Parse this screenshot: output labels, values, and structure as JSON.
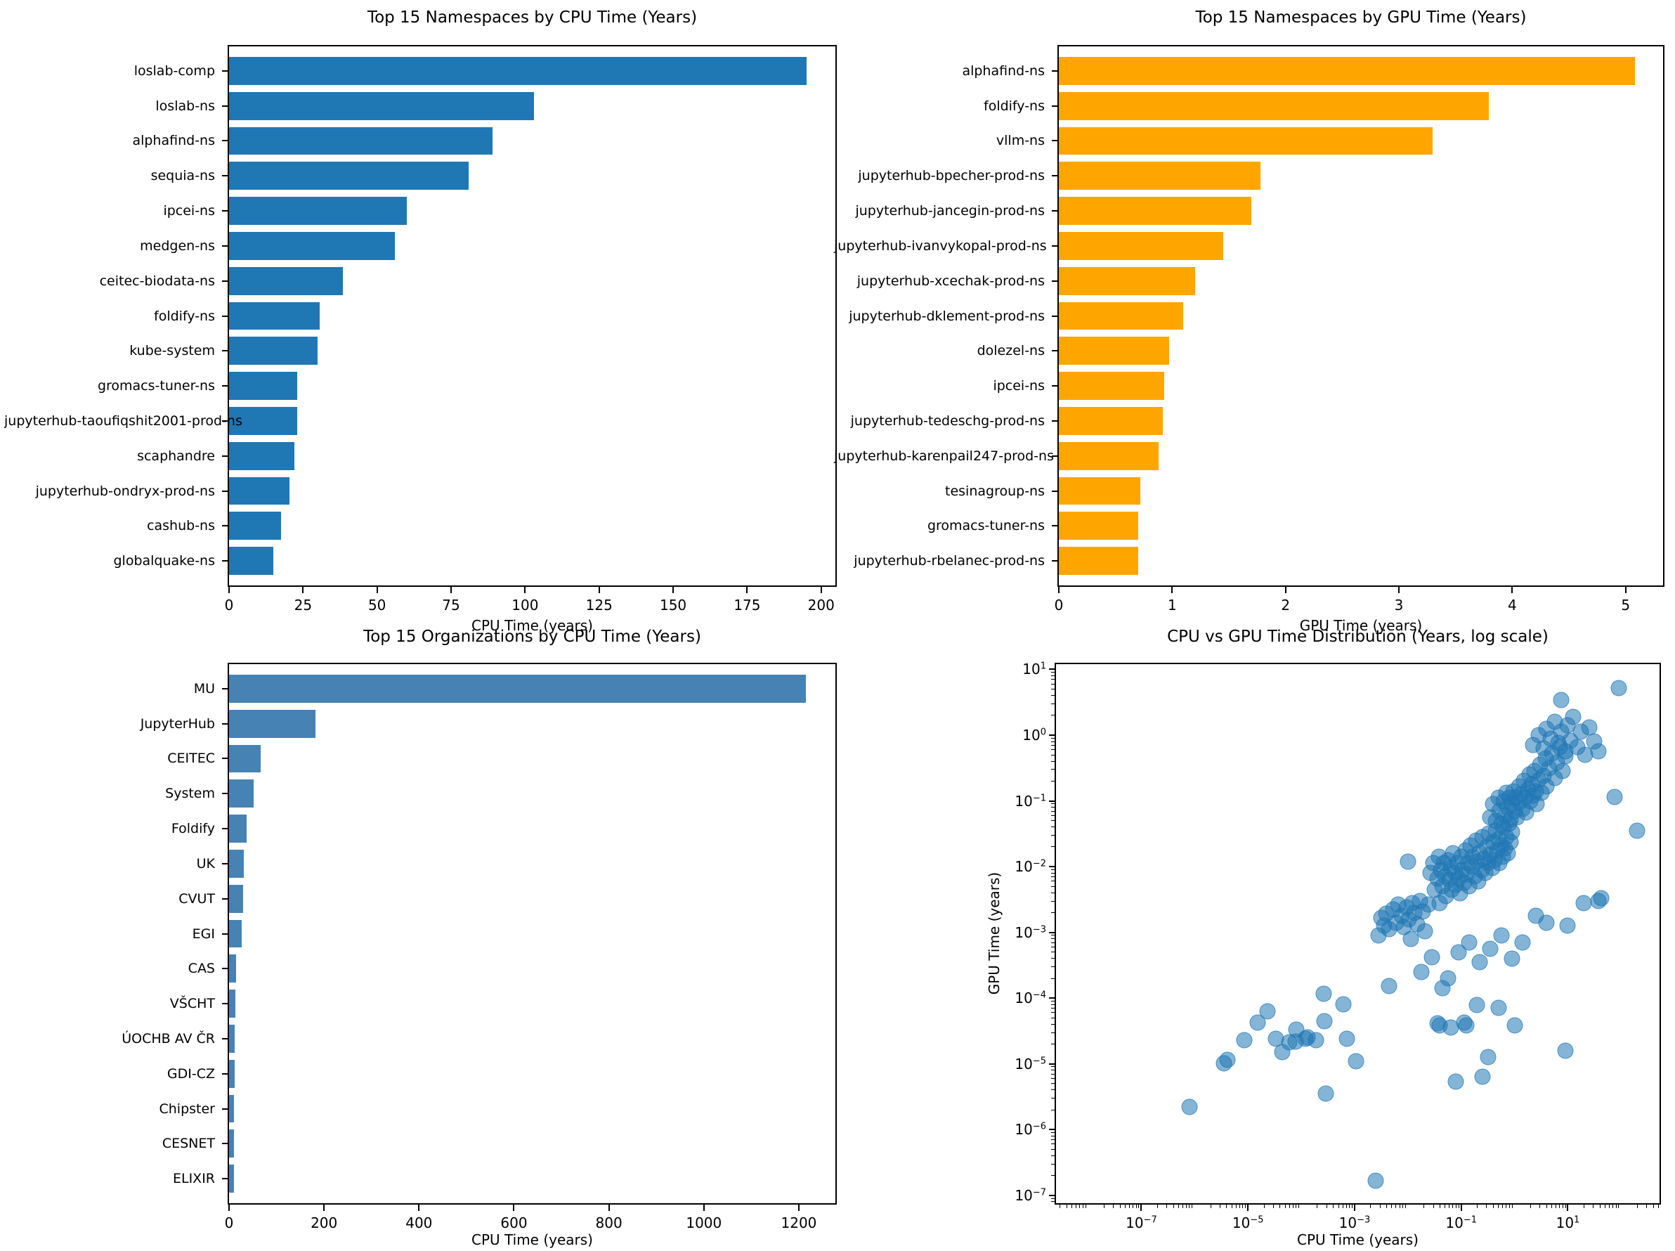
{
  "figure": {
    "background": "#ffffff",
    "text_color": "#000000"
  },
  "chart_data": [
    {
      "id": "ns_cpu",
      "type": "bar",
      "orientation": "horizontal",
      "title": "Top 15 Namespaces by CPU Time (Years)",
      "xlabel": "CPU Time (years)",
      "bar_color": "#1f77b4",
      "xlim": [
        0,
        204.8
      ],
      "xticks": [
        0,
        25,
        50,
        75,
        100,
        125,
        150,
        175,
        200
      ],
      "categories": [
        "loslab-comp",
        "loslab-ns",
        "alphafind-ns",
        "sequia-ns",
        "ipcei-ns",
        "medgen-ns",
        "ceitec-biodata-ns",
        "foldify-ns",
        "kube-system",
        "gromacs-tuner-ns",
        "jupyterhub-taoufiqshit2001-prod-ns",
        "scaphandre",
        "jupyterhub-ondryx-prod-ns",
        "cashub-ns",
        "globalquake-ns"
      ],
      "values": [
        195,
        103,
        89,
        81,
        60,
        56,
        38.5,
        30.5,
        30,
        23,
        23,
        22,
        20.5,
        17.5,
        15
      ]
    },
    {
      "id": "ns_gpu",
      "type": "bar",
      "orientation": "horizontal",
      "title": "Top 15 Namespaces by GPU Time (Years)",
      "xlabel": "GPU Time (years)",
      "bar_color": "#ffa500",
      "xlim": [
        0,
        5.33
      ],
      "xticks": [
        0,
        1,
        2,
        3,
        4,
        5
      ],
      "categories": [
        "alphafind-ns",
        "foldify-ns",
        "vllm-ns",
        "jupyterhub-bpecher-prod-ns",
        "jupyterhub-jancegin-prod-ns",
        "jupyterhub-ivanvykopal-prod-ns",
        "jupyterhub-xcechak-prod-ns",
        "jupyterhub-dklement-prod-ns",
        "dolezel-ns",
        "ipcei-ns",
        "jupyterhub-tedeschg-prod-ns",
        "jupyterhub-karenpail247-prod-ns",
        "tesinagroup-ns",
        "gromacs-tuner-ns",
        "jupyterhub-rbelanec-prod-ns"
      ],
      "values": [
        5.08,
        3.79,
        3.3,
        1.78,
        1.7,
        1.45,
        1.2,
        1.1,
        0.97,
        0.93,
        0.92,
        0.88,
        0.72,
        0.7,
        0.7
      ]
    },
    {
      "id": "org_cpu",
      "type": "bar",
      "orientation": "horizontal",
      "title": "Top 15 Organizations by CPU Time (Years)",
      "xlabel": "CPU Time (years)",
      "bar_color": "#4682b4",
      "xlim": [
        0,
        1277
      ],
      "xticks": [
        0,
        200,
        400,
        600,
        800,
        1000,
        1200
      ],
      "categories": [
        "MU",
        "JupyterHub",
        "CEITEC",
        "System",
        "Foldify",
        "UK",
        "CVUT",
        "EGI",
        "CAS",
        "VŠCHT",
        "ÚOCHB AV ČR",
        "GDI-CZ",
        "Chipster",
        "CESNET",
        "ELIXIR"
      ],
      "values": [
        1215,
        182,
        66,
        52,
        37,
        31,
        30,
        26,
        15,
        14,
        12,
        11.5,
        11,
        10.5,
        10
      ]
    },
    {
      "id": "cpu_gpu_scatter",
      "type": "scatter",
      "title": "CPU vs GPU Time Distribution (Years, log scale)",
      "xlabel": "CPU Time (years)",
      "ylabel": "GPU Time (years)",
      "x_scale": "log",
      "y_scale": "log",
      "xlim_log10": [
        -8.6,
        2.72
      ],
      "ylim_log10": [
        -7.12,
        1.08
      ],
      "xtick_exponents": [
        -7,
        -5,
        -3,
        -1,
        1
      ],
      "ytick_exponents": [
        -7,
        -6,
        -5,
        -4,
        -3,
        -2,
        -1,
        0,
        1
      ],
      "marker_color": "#1f77b4",
      "marker_alpha": 0.6,
      "points_log10": [
        [
          -6.1,
          -5.65
        ],
        [
          -5.45,
          -4.99
        ],
        [
          -5.39,
          -4.94
        ],
        [
          -5.07,
          -4.64
        ],
        [
          -4.82,
          -4.37
        ],
        [
          -4.63,
          -4.2
        ],
        [
          -4.47,
          -4.62
        ],
        [
          -4.36,
          -4.82
        ],
        [
          -4.22,
          -4.67
        ],
        [
          -4.11,
          -4.66
        ],
        [
          -4.09,
          -4.48
        ],
        [
          -3.92,
          -4.62
        ],
        [
          -3.88,
          -4.6
        ],
        [
          -3.72,
          -4.64
        ],
        [
          -3.58,
          -3.93
        ],
        [
          -3.56,
          -4.35
        ],
        [
          -3.54,
          -5.45
        ],
        [
          -3.21,
          -4.09
        ],
        [
          -3.15,
          -4.62
        ],
        [
          -2.97,
          -4.96
        ],
        [
          -2.6,
          -6.78
        ],
        [
          -2.55,
          -3.05
        ],
        [
          -2.5,
          -2.78
        ],
        [
          -2.45,
          -2.9
        ],
        [
          -2.4,
          -2.72
        ],
        [
          -2.35,
          -2.95
        ],
        [
          -2.28,
          -2.65
        ],
        [
          -2.22,
          -2.85
        ],
        [
          -2.18,
          -2.58
        ],
        [
          -2.12,
          -2.75
        ],
        [
          -2.08,
          -2.92
        ],
        [
          -2.02,
          -2.62
        ],
        [
          -1.98,
          -2.8
        ],
        [
          -1.92,
          -2.55
        ],
        [
          -1.88,
          -2.7
        ],
        [
          -1.82,
          -2.88
        ],
        [
          -1.78,
          -2.52
        ],
        [
          -1.72,
          -2.68
        ],
        [
          -1.68,
          -2.98
        ],
        [
          -1.62,
          -2.58
        ],
        [
          -2.35,
          -3.82
        ],
        [
          -1.95,
          -3.1
        ],
        [
          -1.75,
          -3.6
        ],
        [
          -1.55,
          -3.38
        ],
        [
          -1.45,
          -4.38
        ],
        [
          -1.4,
          -4.42
        ],
        [
          -1.35,
          -3.85
        ],
        [
          -1.25,
          -3.7
        ],
        [
          -1.2,
          -4.45
        ],
        [
          -1.05,
          -3.3
        ],
        [
          -0.95,
          -4.37
        ],
        [
          -0.9,
          -4.42
        ],
        [
          -0.7,
          -4.1
        ],
        [
          -0.5,
          -4.9
        ],
        [
          -0.3,
          -4.15
        ],
        [
          -0.05,
          -3.4
        ],
        [
          -1.1,
          -5.27
        ],
        [
          -0.6,
          -5.2
        ],
        [
          0.95,
          -4.8
        ],
        [
          0.0,
          -4.42
        ],
        [
          0.15,
          -3.15
        ],
        [
          0.4,
          -2.75
        ],
        [
          0.6,
          -2.85
        ],
        [
          1.0,
          -2.9
        ],
        [
          1.3,
          -2.55
        ],
        [
          1.62,
          -2.48
        ],
        [
          1.57,
          -2.52
        ],
        [
          2.3,
          -1.45
        ],
        [
          1.88,
          -0.94
        ],
        [
          -0.85,
          -3.15
        ],
        [
          -0.65,
          -3.45
        ],
        [
          -0.45,
          -3.25
        ],
        [
          -0.25,
          -3.05
        ],
        [
          -2.0,
          -1.92
        ],
        [
          -1.58,
          -2.1
        ],
        [
          -1.52,
          -1.95
        ],
        [
          -1.5,
          -2.35
        ],
        [
          -1.45,
          -2.18
        ],
        [
          -1.42,
          -1.85
        ],
        [
          -1.4,
          -2.55
        ],
        [
          -1.38,
          -2.05
        ],
        [
          -1.35,
          -2.3
        ],
        [
          -1.32,
          -1.95
        ],
        [
          -1.3,
          -2.15
        ],
        [
          -1.28,
          -2.45
        ],
        [
          -1.25,
          -1.9
        ],
        [
          -1.22,
          -2.2
        ],
        [
          -1.2,
          -2.02
        ],
        [
          -1.18,
          -2.35
        ],
        [
          -1.15,
          -1.8
        ],
        [
          -1.12,
          -2.1
        ],
        [
          -1.1,
          -2.28
        ],
        [
          -1.08,
          -1.95
        ],
        [
          -1.05,
          -2.18
        ],
        [
          -1.02,
          -2.4
        ],
        [
          -1.0,
          -1.85
        ],
        [
          -0.98,
          -2.05
        ],
        [
          -0.95,
          -2.25
        ],
        [
          -0.92,
          -1.75
        ],
        [
          -0.9,
          -2.12
        ],
        [
          -0.88,
          -1.95
        ],
        [
          -0.85,
          -2.3
        ],
        [
          -0.82,
          -1.68
        ],
        [
          -0.8,
          -2.0
        ],
        [
          -0.78,
          -1.85
        ],
        [
          -0.75,
          -2.15
        ],
        [
          -0.72,
          -1.6
        ],
        [
          -0.7,
          -1.92
        ],
        [
          -0.68,
          -2.22
        ],
        [
          -0.65,
          -1.78
        ],
        [
          -0.62,
          -2.05
        ],
        [
          -0.6,
          -1.55
        ],
        [
          -0.58,
          -1.88
        ],
        [
          -0.55,
          -2.1
        ],
        [
          -0.52,
          -1.7
        ],
        [
          -0.5,
          -1.95
        ],
        [
          -0.48,
          -1.5
        ],
        [
          -0.45,
          -1.82
        ],
        [
          -0.42,
          -2.02
        ],
        [
          -0.4,
          -1.62
        ],
        [
          -0.38,
          -1.9
        ],
        [
          -0.35,
          -1.45
        ],
        [
          -0.32,
          -1.75
        ],
        [
          -0.3,
          -1.58
        ],
        [
          -0.28,
          -1.95
        ],
        [
          -0.25,
          -1.68
        ],
        [
          -0.22,
          -1.85
        ],
        [
          -0.2,
          -1.4
        ],
        [
          -0.18,
          -1.72
        ],
        [
          -0.15,
          -1.55
        ],
        [
          -0.12,
          -1.8
        ],
        [
          -0.1,
          -1.35
        ],
        [
          -0.08,
          -1.62
        ],
        [
          -0.05,
          -1.48
        ],
        [
          -0.45,
          -1.25
        ],
        [
          -0.4,
          -1.05
        ],
        [
          -0.35,
          -1.3
        ],
        [
          -0.3,
          -0.95
        ],
        [
          -0.28,
          -1.15
        ],
        [
          -0.25,
          -1.35
        ],
        [
          -0.2,
          -1.0
        ],
        [
          -0.18,
          -1.22
        ],
        [
          -0.15,
          -0.88
        ],
        [
          -0.12,
          -1.1
        ],
        [
          -0.1,
          -0.95
        ],
        [
          -0.08,
          -1.28
        ],
        [
          -0.05,
          -1.05
        ],
        [
          -0.02,
          -0.85
        ],
        [
          0.0,
          -1.15
        ],
        [
          0.02,
          -0.95
        ],
        [
          0.05,
          -1.25
        ],
        [
          0.08,
          -0.78
        ],
        [
          0.1,
          -1.02
        ],
        [
          0.12,
          -0.9
        ],
        [
          0.15,
          -1.12
        ],
        [
          0.18,
          -0.7
        ],
        [
          0.2,
          -0.95
        ],
        [
          0.22,
          -1.18
        ],
        [
          0.25,
          -0.82
        ],
        [
          0.28,
          -0.6
        ],
        [
          0.3,
          -1.0
        ],
        [
          0.32,
          -0.75
        ],
        [
          0.35,
          -0.92
        ],
        [
          0.38,
          -0.55
        ],
        [
          0.4,
          -0.85
        ],
        [
          0.42,
          -1.05
        ],
        [
          0.45,
          -0.68
        ],
        [
          0.48,
          -0.45
        ],
        [
          0.5,
          -0.88
        ],
        [
          0.55,
          -0.62
        ],
        [
          0.58,
          -0.35
        ],
        [
          0.6,
          -0.78
        ],
        [
          0.65,
          -0.5
        ],
        [
          0.7,
          -0.28
        ],
        [
          0.75,
          -0.65
        ],
        [
          0.8,
          -0.42
        ],
        [
          0.85,
          -0.18
        ],
        [
          0.9,
          -0.55
        ],
        [
          0.95,
          -0.32
        ],
        [
          0.35,
          -0.15
        ],
        [
          0.45,
          0.0
        ],
        [
          0.55,
          -0.2
        ],
        [
          0.6,
          0.1
        ],
        [
          0.68,
          -0.05
        ],
        [
          0.75,
          0.2
        ],
        [
          0.82,
          -0.12
        ],
        [
          0.88,
          0.05
        ],
        [
          0.95,
          -0.25
        ],
        [
          1.0,
          0.15
        ],
        [
          1.05,
          -0.08
        ],
        [
          1.1,
          0.28
        ],
        [
          1.18,
          -0.18
        ],
        [
          1.25,
          0.05
        ],
        [
          1.32,
          -0.3
        ],
        [
          1.4,
          0.12
        ],
        [
          1.5,
          -0.1
        ],
        [
          1.58,
          -0.25
        ],
        [
          1.95,
          0.72
        ],
        [
          0.87,
          0.53
        ]
      ]
    }
  ]
}
